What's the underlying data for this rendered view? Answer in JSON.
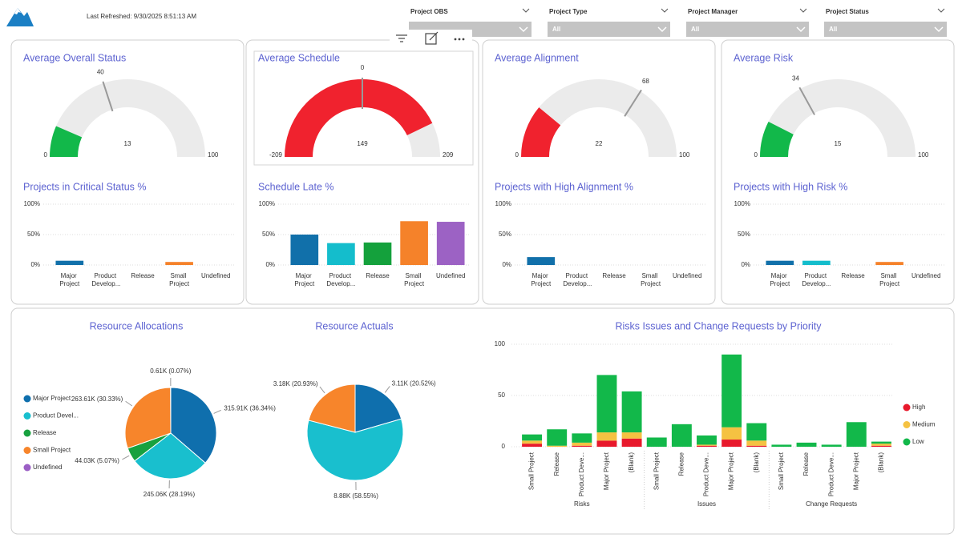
{
  "header": {
    "last_refreshed": "Last Refreshed: 9/30/2025 8:51:13 AM"
  },
  "filters": [
    {
      "label": "Project OBS"
    },
    {
      "label": "Project Type",
      "value": "All"
    },
    {
      "label": "Project Manager",
      "value": "All"
    },
    {
      "label": "Project Status",
      "value": "All"
    }
  ],
  "chart_data": [
    {
      "type": "gauge",
      "title": "Average Overall Status",
      "value": 13,
      "min": 0,
      "max": 100,
      "target": 40,
      "color": "#12b84a"
    },
    {
      "type": "gauge",
      "title": "Average Schedule",
      "value": 149,
      "min": -209,
      "max": 209,
      "target": 0,
      "color": "#f0222e"
    },
    {
      "type": "gauge",
      "title": "Average Alignment",
      "value": 22,
      "min": 0,
      "max": 100,
      "target": 68,
      "color": "#f0222e"
    },
    {
      "type": "gauge",
      "title": "Average Risk",
      "value": 15,
      "min": 0,
      "max": 100,
      "target": 34,
      "color": "#12b84a"
    },
    {
      "type": "bar",
      "title": "Projects in Critical Status %",
      "categories": [
        "Major Project",
        "Product Develop...",
        "Release",
        "Small Project",
        "Undefined"
      ],
      "colors": [
        "#1170aa",
        "#14bdcc",
        "#14a13c",
        "#f5822a",
        "#9c62c4"
      ],
      "values": [
        7,
        0,
        0,
        5,
        0
      ],
      "ylim": [
        0,
        100
      ],
      "yticks": [
        {
          "value": 0,
          "label": "0%"
        },
        {
          "value": 50,
          "label": "50%"
        },
        {
          "value": 100,
          "label": "100%"
        }
      ],
      "grid": true
    },
    {
      "type": "bar",
      "title": "Schedule Late %",
      "categories": [
        "Major Project",
        "Product Develop...",
        "Release",
        "Small Project",
        "Undefined"
      ],
      "colors": [
        "#1170aa",
        "#14bdcc",
        "#14a13c",
        "#f5822a",
        "#9c62c4"
      ],
      "values": [
        50,
        36,
        37,
        72,
        71
      ],
      "ylim": [
        0,
        100
      ],
      "yticks": [
        {
          "value": 0,
          "label": "0%"
        },
        {
          "value": 50,
          "label": "50%"
        },
        {
          "value": 100,
          "label": "100%"
        }
      ],
      "grid": true
    },
    {
      "type": "bar",
      "title": "Projects with High Alignment %",
      "categories": [
        "Major Project",
        "Product Develop...",
        "Release",
        "Small Project",
        "Undefined"
      ],
      "colors": [
        "#1170aa",
        "#14bdcc",
        "#14a13c",
        "#f5822a",
        "#9c62c4"
      ],
      "values": [
        13,
        0,
        0,
        0,
        0
      ],
      "ylim": [
        0,
        100
      ],
      "yticks": [
        {
          "value": 0,
          "label": "0%"
        },
        {
          "value": 50,
          "label": "50%"
        },
        {
          "value": 100,
          "label": "100%"
        }
      ],
      "grid": true
    },
    {
      "type": "bar",
      "title": "Projects with High Risk %",
      "categories": [
        "Major Project",
        "Product Develop...",
        "Release",
        "Small Project",
        "Undefined"
      ],
      "colors": [
        "#1170aa",
        "#14bdcc",
        "#14a13c",
        "#f5822a",
        "#9c62c4"
      ],
      "values": [
        7,
        7,
        0,
        5,
        0
      ],
      "ylim": [
        0,
        100
      ],
      "yticks": [
        {
          "value": 0,
          "label": "0%"
        },
        {
          "value": 50,
          "label": "50%"
        },
        {
          "value": 100,
          "label": "100%"
        }
      ],
      "grid": true
    },
    {
      "type": "pie",
      "title": "Resource Allocations",
      "categories": [
        "Major Project",
        "Product Devel...",
        "Release",
        "Small Project",
        "Undefined"
      ],
      "colors": [
        "#0f6fad",
        "#19bfce",
        "#17a13f",
        "#f7852b",
        "#9b5fc5"
      ],
      "values": [
        315910,
        245060,
        44030,
        263610,
        610
      ],
      "value_labels": [
        "315.91K (36.34%)",
        "245.06K (28.19%)",
        "44.03K (5.07%)",
        "263.61K (30.33%)",
        "0.61K (0.07%)"
      ]
    },
    {
      "type": "pie",
      "title": "Resource Actuals",
      "colors": [
        "#0f6fad",
        "#19bfce",
        "#f7852b"
      ],
      "values": [
        3110,
        8880,
        3180
      ],
      "value_labels": [
        "3.11K (20.52%)",
        "8.88K (58.55%)",
        "3.18K (20.93%)"
      ]
    },
    {
      "type": "stacked_bar",
      "title": "Risks Issues and Change Requests by Priority",
      "groups": [
        "Risks",
        "Issues",
        "Change Requests"
      ],
      "categories": [
        "Small Project",
        "Release",
        "Product Deve...",
        "Major Project",
        "(Blank)",
        "Small Project",
        "Release",
        "Product Deve...",
        "Major Project",
        "(Blank)",
        "Small Project",
        "Release",
        "Product Deve...",
        "Major Project",
        "(Blank)"
      ],
      "series": [
        {
          "name": "High",
          "color": "#e8192c",
          "values": [
            3,
            0,
            1,
            6,
            8,
            0,
            0,
            1,
            7,
            1,
            0,
            0,
            0,
            0,
            1
          ]
        },
        {
          "name": "Medium",
          "color": "#f5c242",
          "values": [
            3,
            1,
            3,
            8,
            6,
            0,
            0,
            1,
            12,
            5,
            0,
            0,
            0,
            0,
            2
          ]
        },
        {
          "name": "Low",
          "color": "#12b84a",
          "values": [
            6,
            16,
            9,
            56,
            40,
            9,
            22,
            9,
            71,
            17,
            2,
            4,
            2,
            24,
            2
          ]
        }
      ],
      "ylim": [
        0,
        100
      ],
      "yticks": [
        0,
        50,
        100
      ],
      "grid": true
    }
  ]
}
